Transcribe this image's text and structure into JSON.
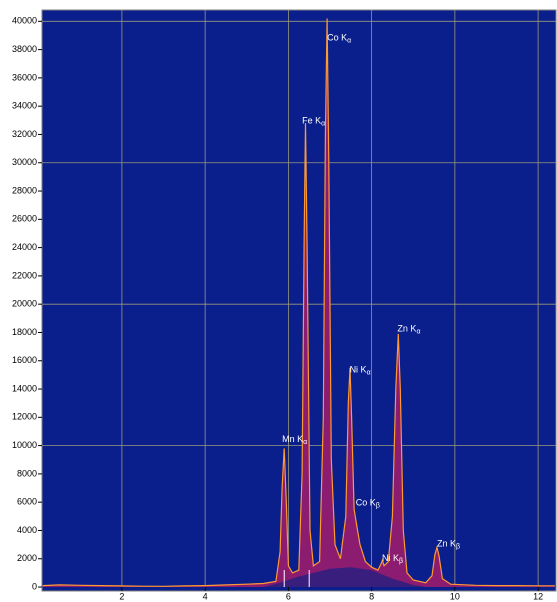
{
  "chart_data": {
    "type": "spectrum",
    "x": [
      0.1,
      0.5,
      1.0,
      1.5,
      2.0,
      2.5,
      3.0,
      3.5,
      4.0,
      4.5,
      5.0,
      5.4,
      5.7,
      5.8,
      5.85,
      5.9,
      5.95,
      6.0,
      6.1,
      6.25,
      6.33,
      6.38,
      6.41,
      6.45,
      6.52,
      6.6,
      6.75,
      6.84,
      6.89,
      6.93,
      6.97,
      7.03,
      7.12,
      7.25,
      7.38,
      7.44,
      7.48,
      7.52,
      7.58,
      7.65,
      7.72,
      7.85,
      8.0,
      8.15,
      8.22,
      8.26,
      8.3,
      8.4,
      8.5,
      8.58,
      8.64,
      8.69,
      8.76,
      8.85,
      9.0,
      9.3,
      9.45,
      9.52,
      9.57,
      9.62,
      9.7,
      9.9,
      10.5,
      11.0,
      11.5,
      12.0,
      12.4
    ],
    "series": [
      {
        "color": "#ff9933",
        "fill": "#8c1c70",
        "values": [
          100,
          150,
          120,
          100,
          80,
          60,
          50,
          80,
          100,
          150,
          200,
          250,
          400,
          2500,
          7000,
          9800,
          6000,
          1500,
          1000,
          1200,
          8000,
          25000,
          32800,
          24000,
          4000,
          1500,
          1800,
          12000,
          32000,
          40200,
          30000,
          9000,
          3000,
          2000,
          5000,
          13000,
          15500,
          12000,
          5500,
          4200,
          3000,
          1800,
          1400,
          1200,
          1600,
          1900,
          1500,
          1800,
          5000,
          14000,
          17900,
          14000,
          4000,
          1000,
          500,
          300,
          800,
          2300,
          2800,
          2200,
          600,
          200,
          120,
          100,
          100,
          90,
          90
        ]
      },
      {
        "fill": "#3a1e7e",
        "x": [
          5.4,
          5.8,
          6.2,
          6.6,
          7.0,
          7.5,
          8.0,
          8.5,
          9.0,
          9.3
        ],
        "values": [
          0,
          300,
          700,
          1000,
          1300,
          1400,
          1200,
          600,
          150,
          0
        ]
      }
    ],
    "annotations": [
      {
        "label": "Co K",
        "sub": "α",
        "x": 6.93,
        "y": 38800
      },
      {
        "label": "Fe K",
        "sub": "α",
        "x": 6.33,
        "y": 32900
      },
      {
        "label": "Mn K",
        "sub": "α",
        "x": 5.85,
        "y": 10400
      },
      {
        "label": "Ni K",
        "sub": "α",
        "x": 7.47,
        "y": 15300
      },
      {
        "label": "Co K",
        "sub": "β",
        "x": 7.62,
        "y": 5900
      },
      {
        "label": "Ni K",
        "sub": "β",
        "x": 8.25,
        "y": 2000
      },
      {
        "label": "Zn K",
        "sub": "α",
        "x": 8.62,
        "y": 18200
      },
      {
        "label": "Zn K",
        "sub": "β",
        "x": 9.57,
        "y": 3000
      }
    ],
    "markers": [
      5.9,
      6.5
    ],
    "xlim": [
      0.08,
      12.43
    ],
    "ylim": [
      -280,
      40800
    ],
    "xticks": [
      2,
      4,
      6,
      8,
      10,
      12
    ],
    "yticks": [
      0,
      2000,
      4000,
      6000,
      8000,
      10000,
      12000,
      14000,
      16000,
      18000,
      20000,
      22000,
      24000,
      26000,
      28000,
      30000,
      32000,
      34000,
      36000,
      38000,
      40000
    ],
    "ygrid": [
      10000,
      20000,
      30000,
      40000
    ],
    "grid": true,
    "background": "#0a1e8c"
  }
}
